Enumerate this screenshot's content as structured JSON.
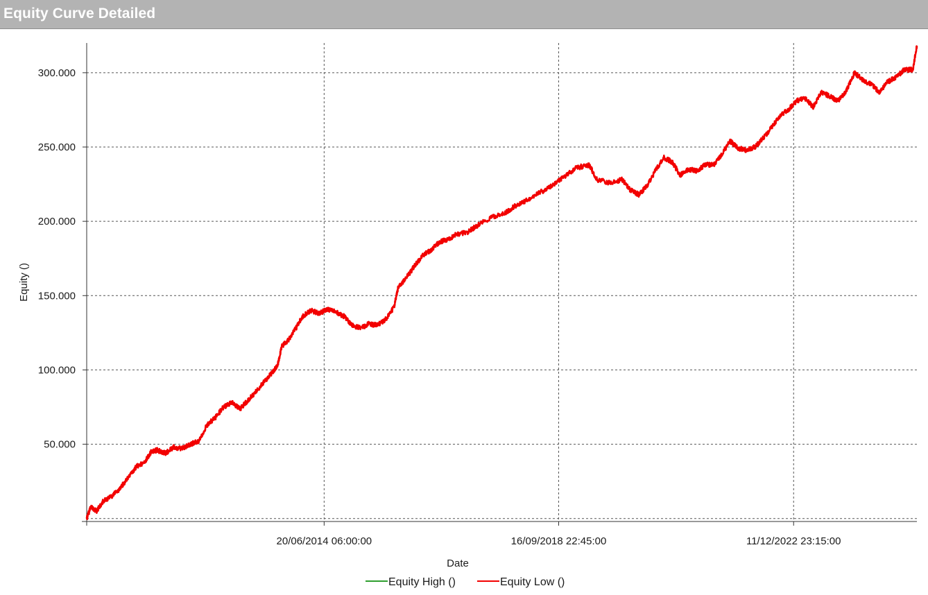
{
  "header": {
    "title": "Equity Curve Detailed"
  },
  "chart_data": {
    "type": "line",
    "xlabel": "Date",
    "ylabel": "Equity ()",
    "ylim": [
      -2000,
      320000
    ],
    "y_ticks": [
      {
        "value": 50000,
        "label": "50.000"
      },
      {
        "value": 100000,
        "label": "100.000"
      },
      {
        "value": 150000,
        "label": "150.000"
      },
      {
        "value": 200000,
        "label": "200.000"
      },
      {
        "value": 250000,
        "label": "250.000"
      },
      {
        "value": 300000,
        "label": "300.000"
      }
    ],
    "x_ticks": [
      {
        "value": 0.286,
        "label": "20/06/2014 06:00:00"
      },
      {
        "value": 0.5685,
        "label": "16/09/2018 22:45:00"
      },
      {
        "value": 0.8515,
        "label": "11/12/2022 23:15:00"
      }
    ],
    "grid": true,
    "legend": "bottom",
    "colors": {
      "equity_high": "#2e9e2e",
      "equity_low": "#f20000"
    },
    "series": [
      {
        "name": "Equity High ()",
        "color": "#2e9e2e",
        "points": []
      },
      {
        "name": "Equity Low ()",
        "color": "#f20000",
        "points": [
          [
            0.0,
            0
          ],
          [
            0.005,
            8000
          ],
          [
            0.012,
            5000
          ],
          [
            0.02,
            12000
          ],
          [
            0.03,
            15000
          ],
          [
            0.04,
            20000
          ],
          [
            0.05,
            28000
          ],
          [
            0.06,
            35000
          ],
          [
            0.07,
            38000
          ],
          [
            0.078,
            45000
          ],
          [
            0.085,
            46000
          ],
          [
            0.095,
            44000
          ],
          [
            0.105,
            48000
          ],
          [
            0.115,
            47000
          ],
          [
            0.125,
            50000
          ],
          [
            0.135,
            52000
          ],
          [
            0.145,
            63000
          ],
          [
            0.155,
            68000
          ],
          [
            0.165,
            75000
          ],
          [
            0.175,
            78000
          ],
          [
            0.185,
            74000
          ],
          [
            0.195,
            80000
          ],
          [
            0.205,
            86000
          ],
          [
            0.215,
            93000
          ],
          [
            0.225,
            99000
          ],
          [
            0.23,
            103000
          ],
          [
            0.235,
            116000
          ],
          [
            0.243,
            120000
          ],
          [
            0.252,
            128000
          ],
          [
            0.26,
            136000
          ],
          [
            0.27,
            140000
          ],
          [
            0.28,
            138000
          ],
          [
            0.29,
            141000
          ],
          [
            0.3,
            139000
          ],
          [
            0.31,
            136000
          ],
          [
            0.32,
            130000
          ],
          [
            0.33,
            128000
          ],
          [
            0.34,
            131000
          ],
          [
            0.35,
            130000
          ],
          [
            0.36,
            134000
          ],
          [
            0.37,
            142000
          ],
          [
            0.375,
            155000
          ],
          [
            0.385,
            162000
          ],
          [
            0.395,
            170000
          ],
          [
            0.405,
            177000
          ],
          [
            0.415,
            181000
          ],
          [
            0.425,
            186000
          ],
          [
            0.435,
            188000
          ],
          [
            0.445,
            191000
          ],
          [
            0.46,
            193000
          ],
          [
            0.475,
            199000
          ],
          [
            0.49,
            203000
          ],
          [
            0.505,
            206000
          ],
          [
            0.515,
            210000
          ],
          [
            0.53,
            214000
          ],
          [
            0.545,
            219000
          ],
          [
            0.56,
            224000
          ],
          [
            0.575,
            230000
          ],
          [
            0.59,
            236000
          ],
          [
            0.605,
            238000
          ],
          [
            0.615,
            228000
          ],
          [
            0.63,
            226000
          ],
          [
            0.645,
            228000
          ],
          [
            0.655,
            221000
          ],
          [
            0.665,
            218000
          ],
          [
            0.675,
            224000
          ],
          [
            0.685,
            234000
          ],
          [
            0.695,
            243000
          ],
          [
            0.705,
            240000
          ],
          [
            0.715,
            231000
          ],
          [
            0.725,
            235000
          ],
          [
            0.735,
            234000
          ],
          [
            0.745,
            238000
          ],
          [
            0.755,
            238000
          ],
          [
            0.765,
            245000
          ],
          [
            0.775,
            254000
          ],
          [
            0.785,
            249000
          ],
          [
            0.795,
            248000
          ],
          [
            0.805,
            250000
          ],
          [
            0.815,
            256000
          ],
          [
            0.825,
            263000
          ],
          [
            0.835,
            271000
          ],
          [
            0.845,
            275000
          ],
          [
            0.855,
            281000
          ],
          [
            0.865,
            283000
          ],
          [
            0.875,
            277000
          ],
          [
            0.885,
            287000
          ],
          [
            0.895,
            284000
          ],
          [
            0.905,
            281000
          ],
          [
            0.915,
            288000
          ],
          [
            0.925,
            300000
          ],
          [
            0.935,
            295000
          ],
          [
            0.945,
            292000
          ],
          [
            0.955,
            287000
          ],
          [
            0.965,
            294000
          ],
          [
            0.975,
            297000
          ],
          [
            0.985,
            302000
          ],
          [
            0.995,
            302000
          ],
          [
            1.0,
            318000
          ]
        ]
      }
    ]
  }
}
